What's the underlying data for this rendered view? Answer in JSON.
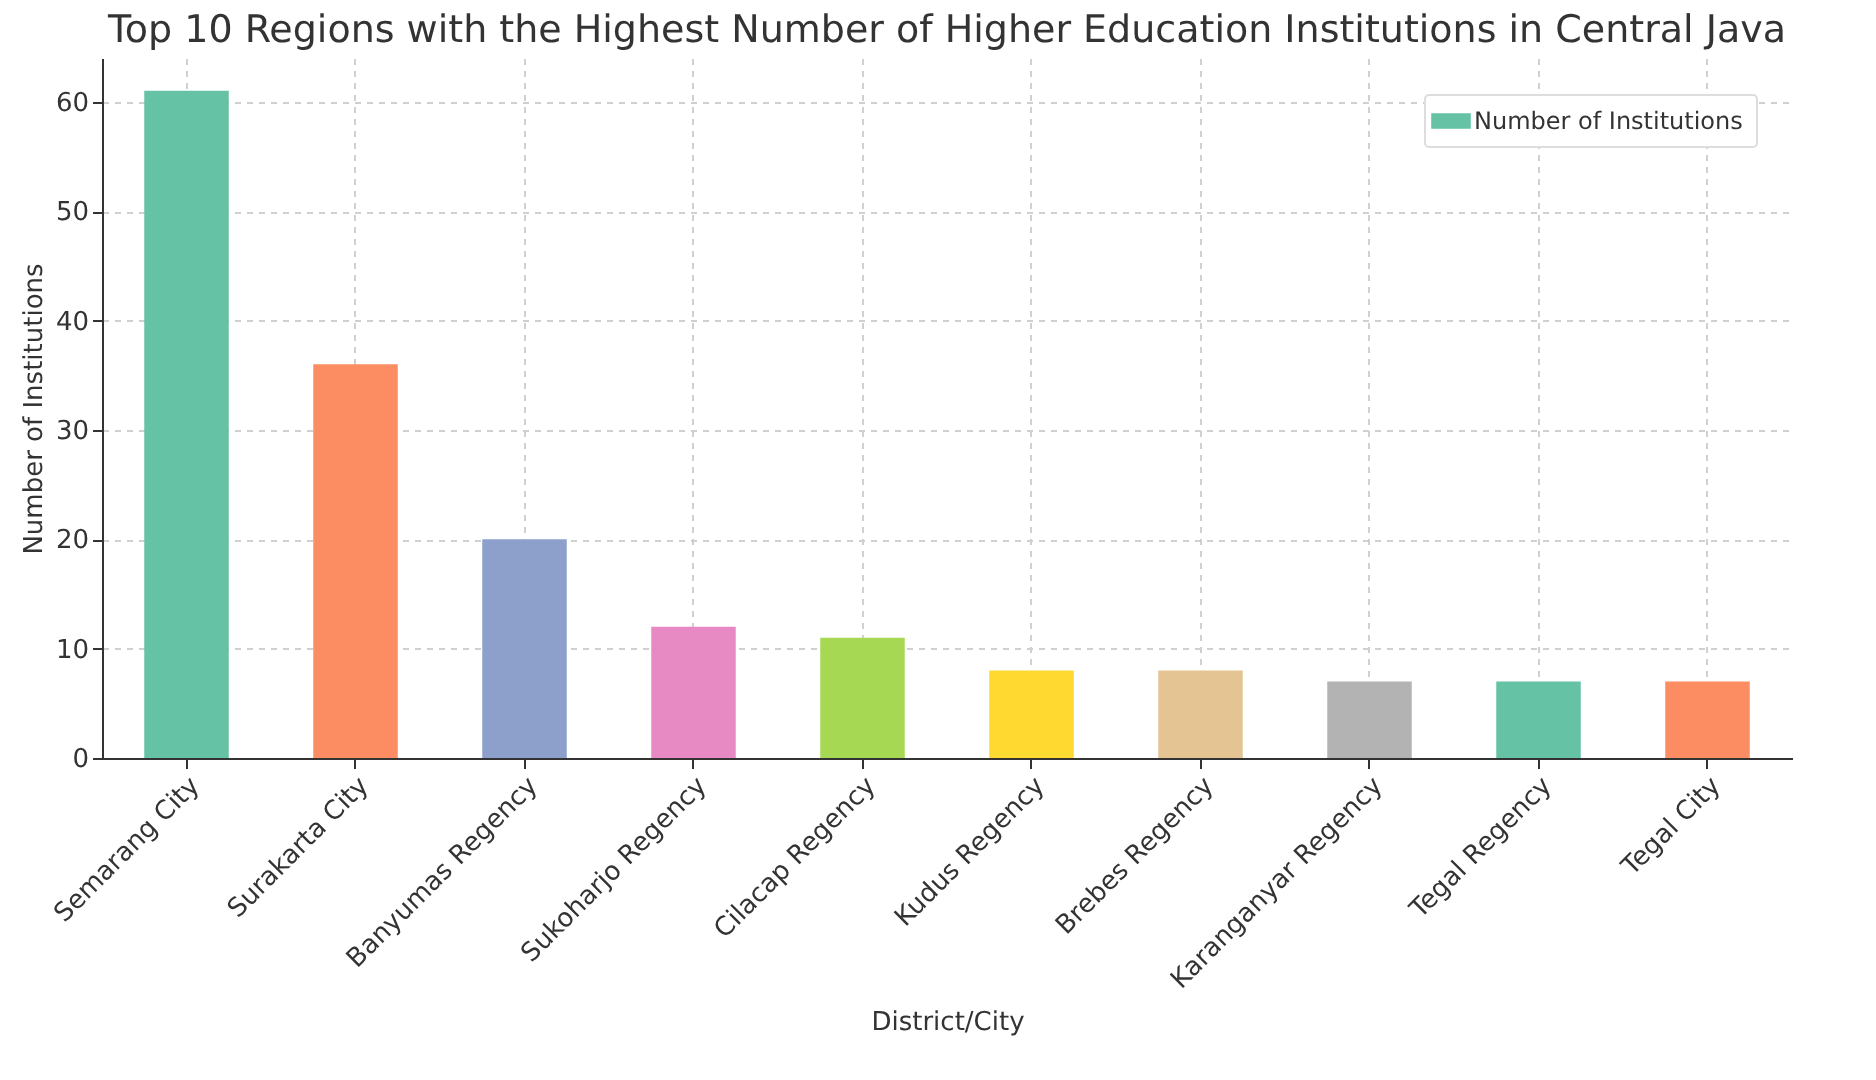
{
  "chart_data": {
    "type": "bar",
    "title": "Top 10 Regions with the Highest Number of Higher Education Institutions in Central Java",
    "xlabel": "District/City",
    "ylabel": "Number of Institutions",
    "categories": [
      "Semarang City",
      "Surakarta City",
      "Banyumas Regency",
      "Sukoharjo Regency",
      "Cilacap Regency",
      "Kudus Regency",
      "Brebes Regency",
      "Karanganyar Regency",
      "Tegal Regency",
      "Tegal City"
    ],
    "series": [
      {
        "name": "Number of Institutions",
        "values": [
          61,
          36,
          20,
          12,
          11,
          8,
          8,
          7,
          7,
          7
        ]
      }
    ],
    "colors": [
      "#66c2a5",
      "#fc8d62",
      "#8da0cb",
      "#e78ac3",
      "#a6d854",
      "#ffd92f",
      "#e5c494",
      "#b3b3b3",
      "#66c2a5",
      "#fc8d62"
    ],
    "ylim": [
      0,
      64
    ],
    "yticks": [
      0,
      10,
      20,
      30,
      40,
      50,
      60
    ],
    "grid": true,
    "legend": "top right"
  }
}
